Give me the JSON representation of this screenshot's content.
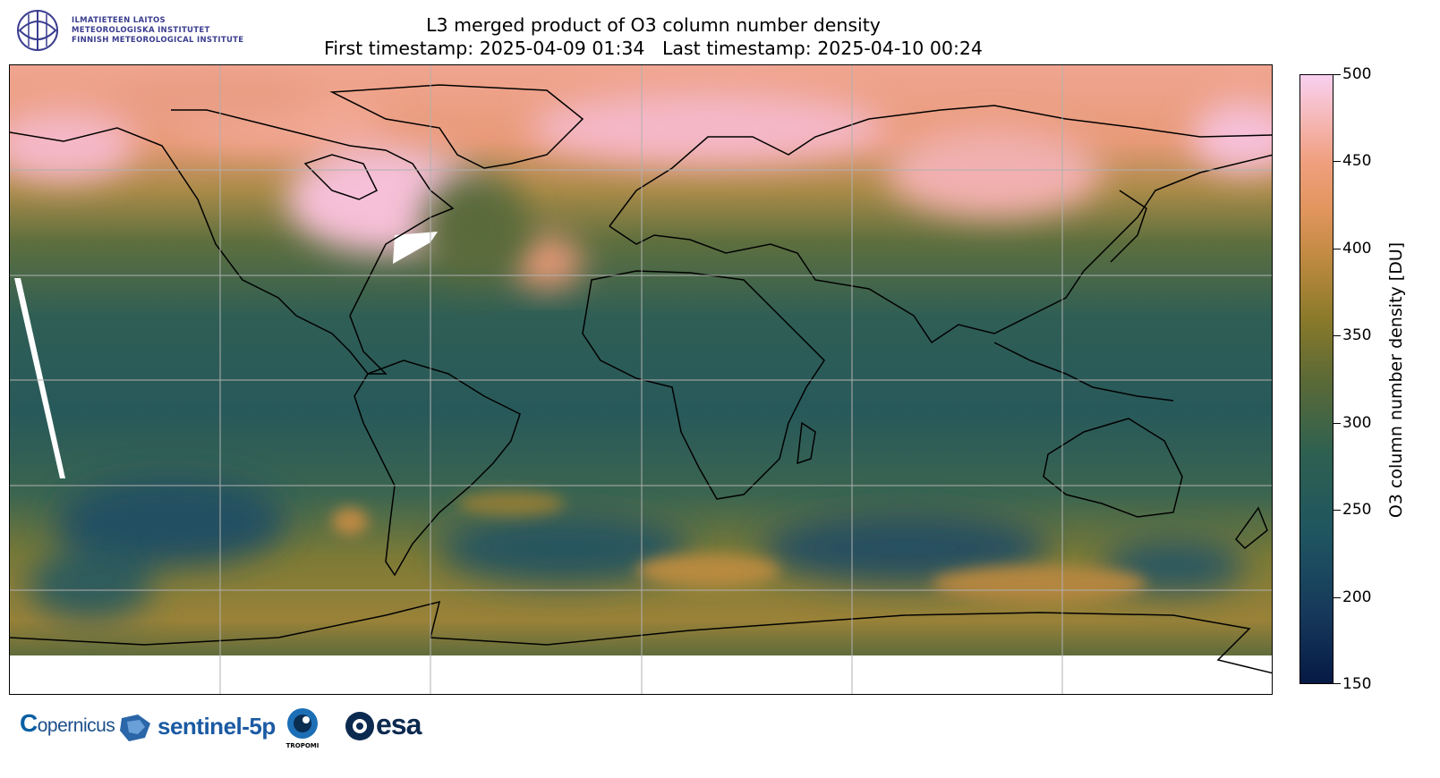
{
  "institute": {
    "line1": "ILMATIETEEN LAITOS",
    "line2": "METEOROLOGISKA INSTITUTET",
    "line3": "FINNISH METEOROLOGICAL INSTITUTE",
    "icon": "fmi-logo-icon",
    "color": "#3a3d8f"
  },
  "title": {
    "line1": "L3 merged product of O3 column number density",
    "line2": "First timestamp: 2025-04-09 01:34   Last timestamp: 2025-04-10 00:24"
  },
  "colorbar": {
    "label": "O3 column number density [DU]",
    "min": 150,
    "max": 500,
    "ticks": [
      "500",
      "450",
      "400",
      "350",
      "300",
      "250",
      "200",
      "150"
    ],
    "colormap_colors": [
      "#061a44",
      "#1f5660",
      "#5c6a36",
      "#c08a42",
      "#f0a080",
      "#f8d0f0"
    ]
  },
  "map": {
    "projection": "equirectangular",
    "grid": true,
    "coastlines": true,
    "missing_data_color": "#ffffff"
  },
  "footer_logos": {
    "copernicus": "opernicus",
    "sentinel": "sentinel-5p",
    "tropomi": "TROPOMI",
    "esa": "esa"
  }
}
